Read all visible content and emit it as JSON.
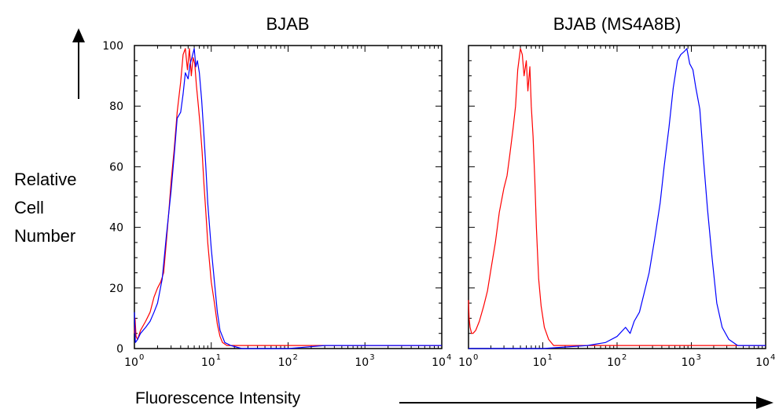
{
  "chart_data": [
    {
      "type": "line",
      "title": "BJAB",
      "ylabel_lines": [
        "Relative",
        "Cell",
        "Number"
      ],
      "xlabel": "Fluorescence Intensity",
      "x_scale": "log",
      "xlim": [
        1,
        10000
      ],
      "ylim": [
        0,
        100
      ],
      "y_ticks": [
        "0",
        "20",
        "40",
        "60",
        "80",
        "100"
      ],
      "x_ticks": [
        {
          "base": "10",
          "exp": "0"
        },
        {
          "base": "10",
          "exp": "1"
        },
        {
          "base": "10",
          "exp": "2"
        },
        {
          "base": "10",
          "exp": "3"
        },
        {
          "base": "10",
          "exp": "4"
        }
      ],
      "grid": false,
      "series": [
        {
          "color": "#ff0000",
          "x": [
            1.0,
            1.02,
            1.05,
            1.1,
            1.2,
            1.4,
            1.6,
            1.8,
            2.0,
            2.2,
            2.4,
            2.6,
            2.8,
            3.0,
            3.3,
            3.6,
            4.0,
            4.3,
            4.6,
            4.9,
            5.2,
            5.5,
            5.8,
            6.1,
            6.4,
            6.8,
            7.2,
            7.6,
            8.0,
            8.5,
            9.0,
            10.0,
            11.0,
            12.0,
            13.0,
            14.0,
            16.0,
            20.0,
            50.0,
            100.0,
            1000.0,
            10000.0
          ],
          "y": [
            5,
            10,
            4,
            3,
            6,
            9,
            12,
            17,
            20,
            22,
            25,
            35,
            45,
            55,
            66,
            78,
            88,
            97,
            99,
            92,
            99,
            90,
            96,
            94,
            87,
            80,
            73,
            65,
            55,
            45,
            35,
            22,
            15,
            8,
            4,
            2,
            1,
            1,
            1,
            1,
            1,
            1
          ]
        },
        {
          "color": "#0000ff",
          "x": [
            1.0,
            1.03,
            1.1,
            1.2,
            1.4,
            1.6,
            1.8,
            2.0,
            2.3,
            2.6,
            3.0,
            3.3,
            3.6,
            4.0,
            4.3,
            4.6,
            5.0,
            5.3,
            5.6,
            6.0,
            6.3,
            6.6,
            7.0,
            7.5,
            8.0,
            8.5,
            9.0,
            10.0,
            11.0,
            12.0,
            13.0,
            15.0,
            18.0,
            25.0,
            100.0,
            300.0,
            1000.0,
            10000.0
          ],
          "y": [
            12,
            2,
            3,
            5,
            7,
            9,
            12,
            15,
            23,
            37,
            52,
            64,
            76,
            78,
            84,
            91,
            89,
            94,
            96,
            99,
            93,
            95,
            91,
            82,
            71,
            60,
            48,
            33,
            22,
            12,
            6,
            2,
            1,
            0,
            0,
            1,
            1,
            1
          ]
        }
      ]
    },
    {
      "type": "line",
      "title": "BJAB (MS4A8B)",
      "x_scale": "log",
      "xlim": [
        1,
        10000
      ],
      "ylim": [
        0,
        100
      ],
      "x_ticks": [
        {
          "base": "10",
          "exp": "0"
        },
        {
          "base": "10",
          "exp": "1"
        },
        {
          "base": "10",
          "exp": "2"
        },
        {
          "base": "10",
          "exp": "3"
        },
        {
          "base": "10",
          "exp": "4"
        }
      ],
      "grid": false,
      "series": [
        {
          "color": "#ff0000",
          "x": [
            1.0,
            1.02,
            1.05,
            1.1,
            1.15,
            1.25,
            1.4,
            1.6,
            1.8,
            2.0,
            2.3,
            2.6,
            3.0,
            3.3,
            3.6,
            4.0,
            4.3,
            4.6,
            5.0,
            5.3,
            5.6,
            6.0,
            6.3,
            6.7,
            7.0,
            7.4,
            7.8,
            8.2,
            8.8,
            9.5,
            10.5,
            12.0,
            14.0,
            20.0,
            50.0,
            100.0,
            1000.0,
            10000.0
          ],
          "y": [
            16,
            10,
            7,
            5,
            5,
            6,
            9,
            14,
            19,
            26,
            35,
            45,
            53,
            57,
            64,
            73,
            80,
            92,
            99,
            97,
            90,
            95,
            85,
            93,
            80,
            70,
            56,
            40,
            23,
            14,
            7,
            3,
            1,
            1,
            1,
            1,
            1,
            1
          ]
        },
        {
          "color": "#0000ff",
          "x": [
            1.0,
            10.0,
            40.0,
            70.0,
            100.0,
            130.0,
            150.0,
            170.0,
            200.0,
            230.0,
            270.0,
            320.0,
            380.0,
            430.0,
            500.0,
            570.0,
            650.0,
            720.0,
            800.0,
            870.0,
            950.0,
            1050.0,
            1150.0,
            1300.0,
            1450.0,
            1650.0,
            1900.0,
            2200.0,
            2600.0,
            3200.0,
            4200.0,
            10000.0
          ],
          "y": [
            0,
            0,
            1,
            2,
            4,
            7,
            5,
            9,
            12,
            18,
            25,
            36,
            48,
            60,
            73,
            86,
            95,
            97,
            98,
            99,
            94,
            92,
            86,
            79,
            63,
            46,
            30,
            15,
            7,
            3,
            1,
            1
          ]
        }
      ]
    }
  ]
}
